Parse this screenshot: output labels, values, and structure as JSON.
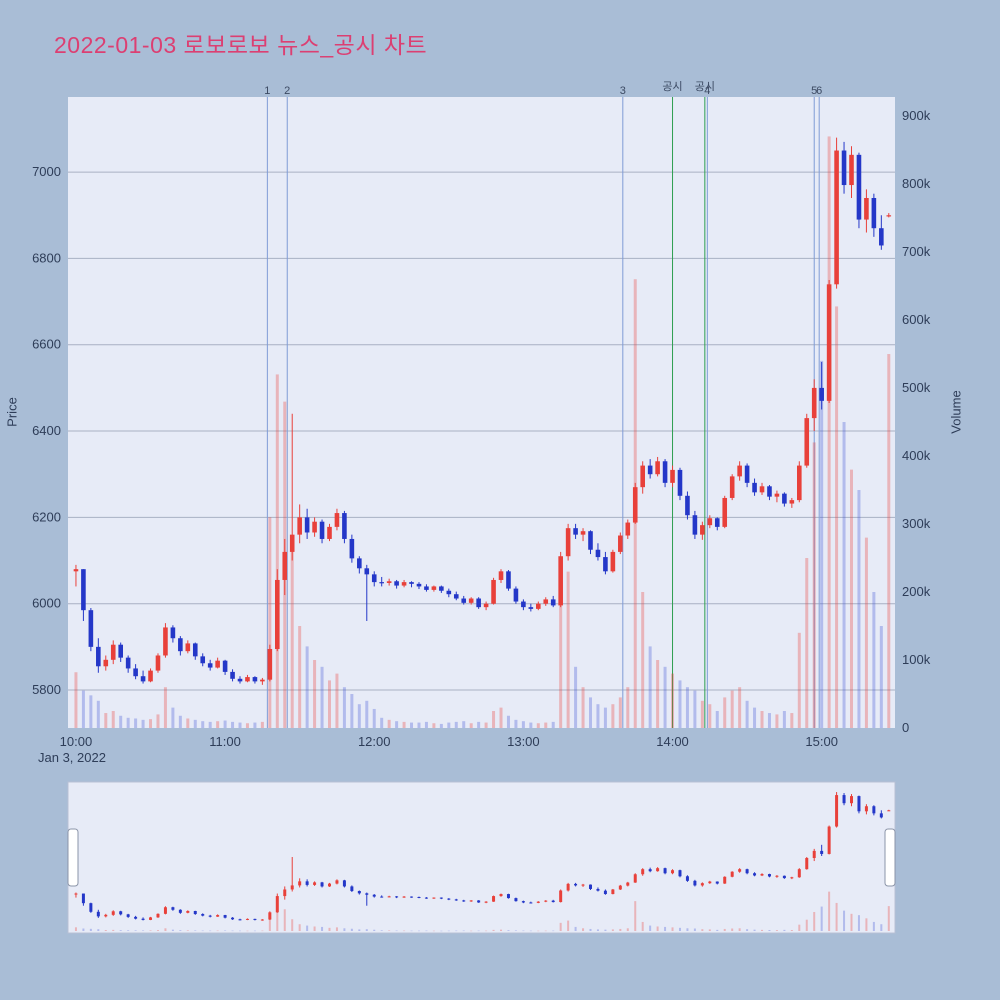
{
  "header": {
    "title": "2022-01-03 로보로보 뉴스_공시 차트",
    "title_color": "#dc3f72"
  },
  "chart_data": {
    "type": "candlestick",
    "title": "2022-01-03 로보로보 뉴스_공시 차트",
    "legend": "none",
    "grid": "horizontal-only",
    "x_axis": {
      "origin": "10:00",
      "date_label": "Jan 3, 2022",
      "range_minutes": [
        -3.2,
        329.5
      ],
      "ticks": [
        {
          "m": 0,
          "label": "10:00"
        },
        {
          "m": 60,
          "label": "11:00"
        },
        {
          "m": 120,
          "label": "12:00"
        },
        {
          "m": 180,
          "label": "13:00"
        },
        {
          "m": 240,
          "label": "14:00"
        },
        {
          "m": 300,
          "label": "15:00"
        }
      ]
    },
    "price_axis": {
      "label": "Price",
      "side": "left",
      "range": [
        5712,
        7174
      ],
      "ticks": [
        5800,
        6000,
        6200,
        6400,
        6600,
        6800,
        7000
      ]
    },
    "volume_axis": {
      "label": "Volume",
      "side": "right",
      "range_k": [
        0,
        928
      ],
      "ticks": [
        {
          "v": 0,
          "label": "0"
        },
        {
          "v": 100,
          "label": "100k"
        },
        {
          "v": 200,
          "label": "200k"
        },
        {
          "v": 300,
          "label": "300k"
        },
        {
          "v": 400,
          "label": "400k"
        },
        {
          "v": 500,
          "label": "500k"
        },
        {
          "v": 600,
          "label": "600k"
        },
        {
          "v": 700,
          "label": "700k"
        },
        {
          "v": 800,
          "label": "800k"
        },
        {
          "v": 900,
          "label": "900k"
        }
      ]
    },
    "colors": {
      "plot_bg": "#e7ebf7",
      "grid": "#a8b0c3",
      "tick_text": "#2e3d58",
      "up": "#e8403a",
      "down": "#2437c8",
      "up_volume": "rgba(232,64,58,0.32)",
      "down_volume": "rgba(66,88,214,0.32)",
      "event_line_news": "#7f9bd6",
      "event_line_disclosure": "#2e9e4f",
      "event_label_text": "#3c4a63",
      "handle_fill": "#ffffff",
      "handle_stroke": "#8b94a8"
    },
    "events": [
      {
        "m": 77,
        "label": "1",
        "type": "news"
      },
      {
        "m": 85,
        "label": "2",
        "type": "news"
      },
      {
        "m": 220,
        "label": "3",
        "type": "news"
      },
      {
        "m": 240,
        "label": "공시",
        "type": "disclosure"
      },
      {
        "m": 253,
        "label": "공시",
        "type": "disclosure"
      },
      {
        "m": 254,
        "label": "4",
        "type": "news"
      },
      {
        "m": 297,
        "label": "5",
        "type": "news"
      },
      {
        "m": 299,
        "label": "6",
        "type": "news"
      }
    ],
    "rangeslider": {
      "present": true,
      "price_range": [
        5770,
        7100
      ]
    },
    "candles": {
      "columns": [
        "minutes_after_10:00",
        "open",
        "high",
        "low",
        "close",
        "volume_k"
      ],
      "rows": [
        [
          0,
          6075,
          6090,
          6040,
          6080,
          82
        ],
        [
          3,
          6080,
          6080,
          5960,
          5985,
          55
        ],
        [
          6,
          5985,
          5990,
          5890,
          5900,
          48
        ],
        [
          9,
          5900,
          5920,
          5840,
          5855,
          40
        ],
        [
          12,
          5855,
          5880,
          5845,
          5870,
          22
        ],
        [
          15,
          5870,
          5915,
          5860,
          5905,
          25
        ],
        [
          18,
          5905,
          5910,
          5865,
          5875,
          18
        ],
        [
          21,
          5875,
          5880,
          5840,
          5850,
          15
        ],
        [
          24,
          5850,
          5860,
          5825,
          5832,
          14
        ],
        [
          27,
          5832,
          5845,
          5815,
          5820,
          12
        ],
        [
          30,
          5820,
          5850,
          5818,
          5845,
          13
        ],
        [
          33,
          5845,
          5885,
          5840,
          5880,
          20
        ],
        [
          36,
          5880,
          5955,
          5875,
          5945,
          60
        ],
        [
          39,
          5945,
          5950,
          5910,
          5920,
          30
        ],
        [
          42,
          5920,
          5925,
          5880,
          5890,
          18
        ],
        [
          45,
          5890,
          5915,
          5885,
          5908,
          14
        ],
        [
          48,
          5908,
          5910,
          5870,
          5878,
          12
        ],
        [
          51,
          5878,
          5885,
          5855,
          5862,
          10
        ],
        [
          54,
          5862,
          5870,
          5845,
          5852,
          9
        ],
        [
          57,
          5852,
          5875,
          5850,
          5868,
          10
        ],
        [
          60,
          5868,
          5870,
          5835,
          5842,
          11
        ],
        [
          63,
          5842,
          5848,
          5820,
          5826,
          9
        ],
        [
          66,
          5826,
          5832,
          5815,
          5820,
          8
        ],
        [
          69,
          5820,
          5835,
          5818,
          5830,
          7
        ],
        [
          72,
          5830,
          5832,
          5815,
          5820,
          8
        ],
        [
          75,
          5820,
          5828,
          5812,
          5824,
          9
        ],
        [
          78,
          5824,
          5905,
          5820,
          5895,
          310
        ],
        [
          81,
          5895,
          6080,
          5890,
          6055,
          520
        ],
        [
          84,
          6055,
          6150,
          6020,
          6120,
          480
        ],
        [
          87,
          6120,
          6440,
          6100,
          6160,
          260
        ],
        [
          90,
          6160,
          6230,
          6140,
          6200,
          150
        ],
        [
          93,
          6200,
          6220,
          6150,
          6165,
          120
        ],
        [
          96,
          6165,
          6200,
          6155,
          6190,
          100
        ],
        [
          99,
          6190,
          6195,
          6140,
          6150,
          90
        ],
        [
          102,
          6150,
          6185,
          6145,
          6178,
          70
        ],
        [
          105,
          6178,
          6220,
          6170,
          6210,
          80
        ],
        [
          108,
          6210,
          6215,
          6140,
          6150,
          60
        ],
        [
          111,
          6150,
          6160,
          6095,
          6105,
          50
        ],
        [
          114,
          6105,
          6110,
          6070,
          6082,
          35
        ],
        [
          117,
          6082,
          6090,
          5960,
          6068,
          40
        ],
        [
          120,
          6068,
          6075,
          6040,
          6050,
          28
        ],
        [
          123,
          6050,
          6062,
          6040,
          6048,
          15
        ],
        [
          126,
          6048,
          6058,
          6042,
          6052,
          12
        ],
        [
          129,
          6052,
          6055,
          6035,
          6042,
          10
        ],
        [
          132,
          6042,
          6055,
          6038,
          6050,
          9
        ],
        [
          135,
          6050,
          6052,
          6038,
          6046,
          8
        ],
        [
          138,
          6046,
          6050,
          6034,
          6040,
          8
        ],
        [
          141,
          6040,
          6045,
          6028,
          6032,
          9
        ],
        [
          144,
          6032,
          6042,
          6028,
          6040,
          7
        ],
        [
          147,
          6040,
          6042,
          6025,
          6030,
          6
        ],
        [
          150,
          6030,
          6035,
          6015,
          6022,
          8
        ],
        [
          153,
          6022,
          6028,
          6008,
          6012,
          9
        ],
        [
          156,
          6012,
          6018,
          5998,
          6002,
          10
        ],
        [
          159,
          6002,
          6015,
          5998,
          6012,
          7
        ],
        [
          162,
          6012,
          6015,
          5988,
          5992,
          9
        ],
        [
          165,
          5992,
          6005,
          5985,
          6000,
          8
        ],
        [
          168,
          6000,
          6060,
          5998,
          6055,
          25
        ],
        [
          171,
          6055,
          6080,
          6048,
          6075,
          30
        ],
        [
          174,
          6075,
          6078,
          6030,
          6035,
          18
        ],
        [
          177,
          6035,
          6040,
          6000,
          6005,
          12
        ],
        [
          180,
          6005,
          6010,
          5985,
          5992,
          10
        ],
        [
          183,
          5992,
          6000,
          5982,
          5988,
          8
        ],
        [
          186,
          5988,
          6005,
          5985,
          6000,
          7
        ],
        [
          189,
          6000,
          6015,
          5995,
          6010,
          8
        ],
        [
          192,
          6010,
          6018,
          5992,
          5996,
          9
        ],
        [
          195,
          5996,
          6120,
          5992,
          6110,
          180
        ],
        [
          198,
          6110,
          6185,
          6100,
          6175,
          230
        ],
        [
          201,
          6175,
          6185,
          6150,
          6160,
          90
        ],
        [
          204,
          6160,
          6175,
          6145,
          6168,
          60
        ],
        [
          207,
          6168,
          6170,
          6115,
          6125,
          45
        ],
        [
          210,
          6125,
          6140,
          6100,
          6108,
          35
        ],
        [
          213,
          6108,
          6120,
          6068,
          6075,
          30
        ],
        [
          216,
          6075,
          6125,
          6072,
          6120,
          35
        ],
        [
          219,
          6120,
          6165,
          6115,
          6158,
          45
        ],
        [
          222,
          6158,
          6195,
          6150,
          6188,
          60
        ],
        [
          225,
          6188,
          6280,
          6185,
          6270,
          660
        ],
        [
          228,
          6270,
          6330,
          6255,
          6320,
          200
        ],
        [
          231,
          6320,
          6335,
          6290,
          6300,
          120
        ],
        [
          234,
          6300,
          6340,
          6295,
          6330,
          100
        ],
        [
          237,
          6330,
          6335,
          6270,
          6280,
          90
        ],
        [
          240,
          6280,
          6320,
          6270,
          6310,
          80
        ],
        [
          243,
          6310,
          6315,
          6240,
          6250,
          70
        ],
        [
          246,
          6250,
          6260,
          6195,
          6205,
          60
        ],
        [
          249,
          6205,
          6215,
          6150,
          6160,
          55
        ],
        [
          252,
          6160,
          6190,
          6148,
          6182,
          40
        ],
        [
          255,
          6182,
          6205,
          6175,
          6198,
          35
        ],
        [
          258,
          6198,
          6200,
          6170,
          6178,
          25
        ],
        [
          261,
          6178,
          6250,
          6175,
          6245,
          45
        ],
        [
          264,
          6245,
          6300,
          6240,
          6295,
          55
        ],
        [
          267,
          6295,
          6330,
          6285,
          6320,
          60
        ],
        [
          270,
          6320,
          6325,
          6270,
          6280,
          40
        ],
        [
          273,
          6280,
          6290,
          6250,
          6258,
          30
        ],
        [
          276,
          6258,
          6280,
          6252,
          6272,
          25
        ],
        [
          279,
          6272,
          6275,
          6240,
          6248,
          22
        ],
        [
          282,
          6248,
          6262,
          6235,
          6255,
          20
        ],
        [
          285,
          6255,
          6258,
          6225,
          6232,
          25
        ],
        [
          288,
          6232,
          6245,
          6222,
          6240,
          22
        ],
        [
          291,
          6240,
          6330,
          6235,
          6320,
          140
        ],
        [
          294,
          6320,
          6440,
          6315,
          6430,
          250
        ],
        [
          297,
          6430,
          6520,
          6400,
          6500,
          420
        ],
        [
          300,
          6500,
          6560,
          6450,
          6470,
          540
        ],
        [
          303,
          6470,
          6750,
          6465,
          6740,
          870
        ],
        [
          306,
          6740,
          7080,
          6730,
          7050,
          620
        ],
        [
          309,
          7050,
          7070,
          6950,
          6970,
          450
        ],
        [
          312,
          6970,
          7060,
          6940,
          7040,
          380
        ],
        [
          315,
          7040,
          7045,
          6870,
          6890,
          350
        ],
        [
          318,
          6890,
          6960,
          6860,
          6940,
          280
        ],
        [
          321,
          6940,
          6950,
          6850,
          6870,
          200
        ],
        [
          324,
          6870,
          6900,
          6820,
          6830,
          150
        ],
        [
          327,
          6900,
          6905,
          6895,
          6900,
          550
        ]
      ]
    }
  }
}
